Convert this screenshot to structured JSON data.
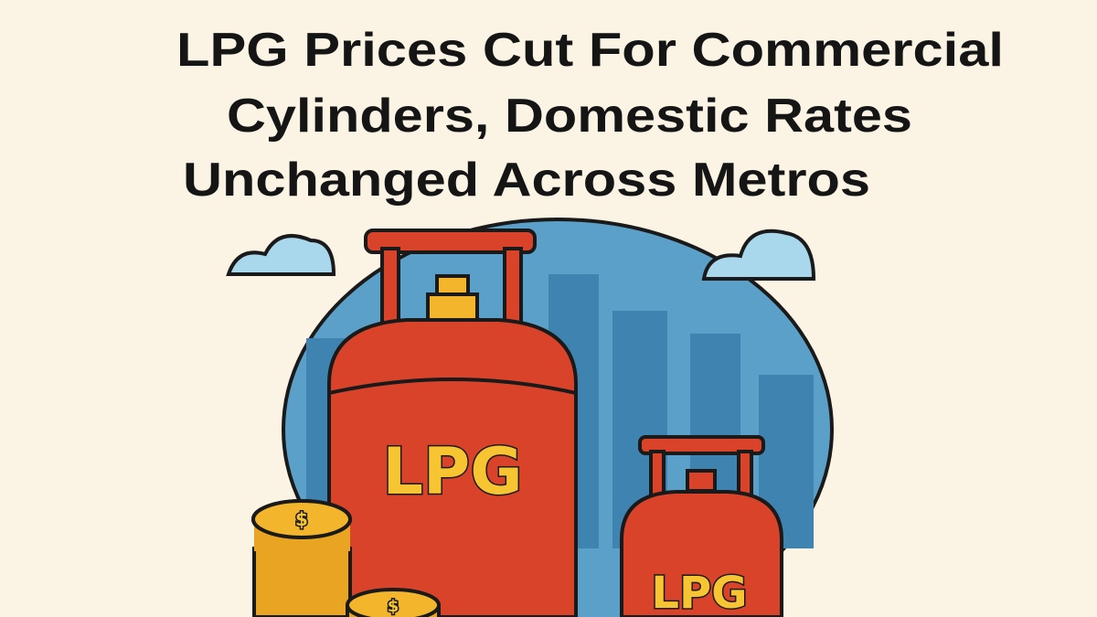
{
  "title": {
    "lines": [
      "LPG Prices Cut For Commercial",
      "Cylinders, Domestic Rates",
      "Unchanged Across Metros"
    ]
  },
  "illustration": {
    "large_cylinder_label": "LPG",
    "small_cylinder_label": "LPG",
    "coin_labels": [
      "$",
      "$"
    ]
  }
}
